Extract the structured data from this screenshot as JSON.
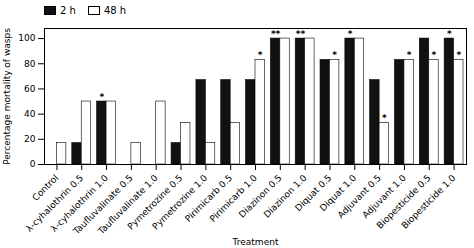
{
  "chart_data": {
    "type": "bar",
    "categories": [
      "Control",
      "λ-cyhalothrin 0.5",
      "λ-cyhalothrin 1.0",
      "Taufluvalinate 0.5",
      "Taufluvalinate 1.0",
      "Pymetrozine 0.5",
      "Pymetrozine 1.0",
      "Pirimicarb 0.5",
      "Pirimicarb 1.0",
      "Diazinon 0.5",
      "Diazinon 1.0",
      "Diquat 0.5",
      "Diquat 1.0",
      "Adjuvant 0.5",
      "Adjuvant 1.0",
      "Biopesticide 0.5",
      "Biopesticide 1.0"
    ],
    "series": [
      {
        "name": "2 h",
        "color": "#111111",
        "values": [
          0,
          17,
          50,
          0,
          0,
          17,
          67,
          67,
          67,
          100,
          100,
          83,
          100,
          67,
          83,
          100,
          100
        ],
        "annotations": [
          null,
          null,
          "*",
          null,
          null,
          null,
          null,
          null,
          null,
          "**",
          "**",
          null,
          "*",
          null,
          null,
          null,
          "*"
        ]
      },
      {
        "name": "48 h",
        "color": "#ffffff",
        "values": [
          17,
          50,
          50,
          17,
          50,
          33,
          17,
          33,
          83,
          100,
          100,
          83,
          100,
          33,
          83,
          83,
          83
        ],
        "annotations": [
          null,
          null,
          null,
          null,
          null,
          null,
          null,
          null,
          "*",
          null,
          null,
          "*",
          null,
          "*",
          "*",
          "*",
          "*"
        ]
      }
    ],
    "xlabel": "Treatment",
    "ylabel": "Percentage mortality of wasps",
    "ylim": [
      0,
      108
    ],
    "yticks": [
      0,
      20,
      40,
      60,
      80,
      100
    ],
    "legend": "upper left"
  }
}
